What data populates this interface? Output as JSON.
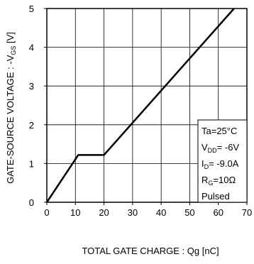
{
  "chart_data": {
    "type": "line",
    "title": "",
    "xlabel": "TOTAL GATE CHARGE : Qg  [nC]",
    "ylabel_parts": {
      "main": "GATE-SOURCE VOLTAGE : -V",
      "sub": "GS",
      "unit": " [V]"
    },
    "xlim": [
      0,
      70
    ],
    "ylim": [
      0,
      5
    ],
    "x_ticks": [
      0,
      10,
      20,
      30,
      40,
      50,
      60,
      70
    ],
    "y_ticks": [
      0,
      1,
      2,
      3,
      4,
      5
    ],
    "grid": true,
    "legend_placement": "bottom-right",
    "series": [
      {
        "x": [
          0,
          11,
          20,
          65.5
        ],
        "y": [
          0,
          1.22,
          1.22,
          5
        ],
        "color": "#000000"
      }
    ],
    "conditions": [
      {
        "main": "Ta=25°C",
        "sub": "",
        "rest": ""
      },
      {
        "main": "V",
        "sub": "DD",
        "rest": "= -6V"
      },
      {
        "main": "I",
        "sub": "D",
        "rest": "= -9.0A"
      },
      {
        "main": "R",
        "sub": "G",
        "rest": "=10Ω"
      },
      {
        "main": "Pulsed",
        "sub": "",
        "rest": ""
      }
    ]
  }
}
